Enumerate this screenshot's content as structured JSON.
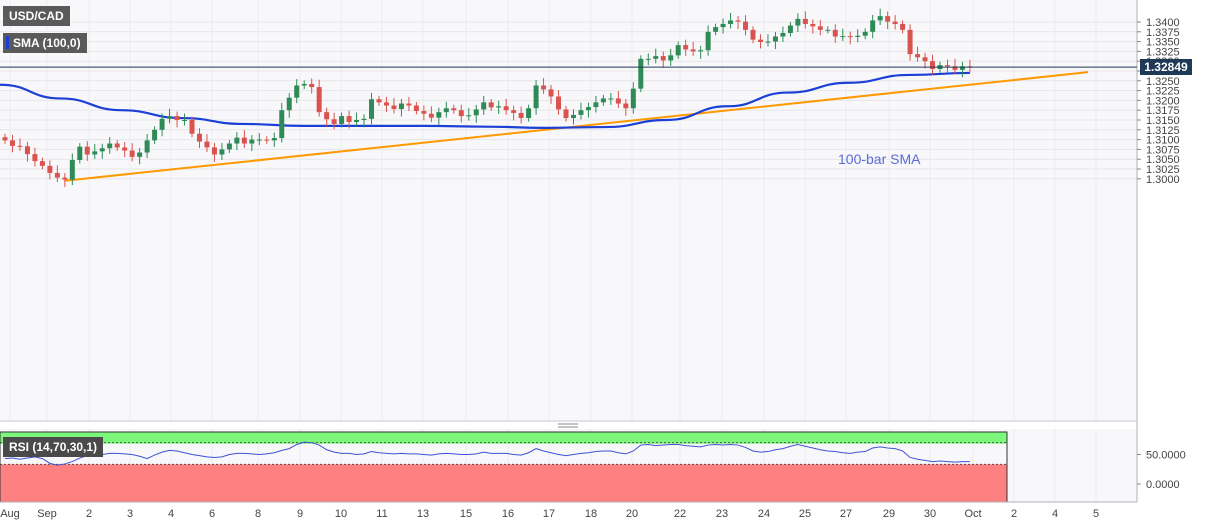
{
  "symbol_label": "USD/CAD",
  "indicator_label": "SMA (100,0)",
  "rsi_label": "RSI (14,70,30,1)",
  "sma_annotation": "100-bar SMA",
  "current_price": "1.32849",
  "colors": {
    "bull": "#2e8b57",
    "bear": "#d9534f",
    "sma": "#1c3fd6",
    "trendline": "#ff9900",
    "rsi_line": "#3f51d6",
    "rsi_overbought": "#7cf77c",
    "rsi_oversold": "#ff8080",
    "price_badge": "#1f3a57",
    "current_line": "#1f3a57"
  },
  "chart_data": [
    {
      "type": "candlestick",
      "title": "USD/CAD",
      "y_ticks": [
        "1.3000",
        "1.3025",
        "1.3050",
        "1.3075",
        "1.3100",
        "1.3125",
        "1.3150",
        "1.3175",
        "1.3200",
        "1.3225",
        "1.3250",
        "1.3275",
        "1.3300",
        "1.3325",
        "1.3350",
        "1.3375",
        "1.3400"
      ],
      "ylim": [
        1.2987,
        1.343
      ],
      "x_ticks": [
        "Aug",
        "Sep",
        "2",
        "3",
        "4",
        "6",
        "8",
        "9",
        "10",
        "11",
        "13",
        "15",
        "16",
        "17",
        "18",
        "20",
        "22",
        "23",
        "24",
        "25",
        "27",
        "29",
        "30",
        "Oct",
        "2",
        "4",
        "5"
      ],
      "grid": true,
      "closes": [
        1.3098,
        1.3084,
        1.3083,
        1.3063,
        1.3045,
        1.3033,
        1.3015,
        1.3003,
        1.2998,
        1.3048,
        1.3082,
        1.3062,
        1.307,
        1.3078,
        1.309,
        1.308,
        1.3072,
        1.3056,
        1.3067,
        1.3098,
        1.3125,
        1.3153,
        1.316,
        1.315,
        1.315,
        1.3115,
        1.3095,
        1.308,
        1.3062,
        1.3075,
        1.309,
        1.3105,
        1.309,
        1.31,
        1.31,
        1.3098,
        1.3104,
        1.3175,
        1.3207,
        1.3238,
        1.3242,
        1.3234,
        1.317,
        1.3152,
        1.314,
        1.316,
        1.3145,
        1.315,
        1.3153,
        1.3203,
        1.3195,
        1.3187,
        1.3178,
        1.3192,
        1.3187,
        1.3173,
        1.3166,
        1.3156,
        1.317,
        1.318,
        1.3175,
        1.316,
        1.3162,
        1.3177,
        1.3195,
        1.3182,
        1.3185,
        1.3175,
        1.3168,
        1.3155,
        1.318,
        1.3238,
        1.3228,
        1.321,
        1.3177,
        1.3155,
        1.3163,
        1.3175,
        1.3183,
        1.3195,
        1.3205,
        1.3205,
        1.3192,
        1.318,
        1.323,
        1.3306,
        1.3306,
        1.3313,
        1.3302,
        1.3315,
        1.3341,
        1.333,
        1.3325,
        1.3328,
        1.3375,
        1.3387,
        1.3395,
        1.3404,
        1.3401,
        1.338,
        1.3355,
        1.3349,
        1.335,
        1.3363,
        1.3372,
        1.3391,
        1.3408,
        1.3395,
        1.3389,
        1.338,
        1.338,
        1.3363,
        1.3364,
        1.3362,
        1.3365,
        1.3375,
        1.3404,
        1.3415,
        1.3401,
        1.3395,
        1.338,
        1.3318,
        1.331,
        1.33,
        1.328,
        1.329,
        1.3287,
        1.3278,
        1.3287,
        1.3285
      ]
    },
    {
      "type": "line",
      "name": "100-bar SMA",
      "values": [
        1.324,
        1.3205,
        1.3175,
        1.3155,
        1.314,
        1.3135,
        1.3135,
        1.3135,
        1.3133,
        1.313,
        1.3132,
        1.315,
        1.3185,
        1.322,
        1.3245,
        1.3265,
        1.327
      ]
    },
    {
      "type": "line",
      "name": "trendline",
      "values": [
        1.2995,
        1.3272
      ]
    },
    {
      "type": "line",
      "title": "RSI (14,70,30,1)",
      "y_ticks": [
        "50.0000",
        "0.0000"
      ],
      "ylim": [
        0,
        100
      ],
      "levels": [
        70,
        30
      ],
      "values": [
        43,
        44,
        42,
        44,
        46,
        43,
        35,
        32,
        34,
        38,
        44,
        48,
        49,
        50,
        52,
        52,
        51,
        50,
        47,
        43,
        49,
        54,
        57,
        56,
        53,
        50,
        48,
        46,
        45,
        46,
        50,
        52,
        52,
        51,
        50,
        51,
        53,
        57,
        60,
        67,
        71,
        70,
        66,
        58,
        54,
        52,
        52,
        50,
        51,
        55,
        53,
        52,
        51,
        52,
        51,
        51,
        50,
        49,
        51,
        52,
        51,
        50,
        50,
        51,
        54,
        52,
        52,
        52,
        50,
        49,
        53,
        60,
        56,
        53,
        50,
        48,
        50,
        52,
        53,
        55,
        56,
        56,
        53,
        51,
        56,
        66,
        67,
        65,
        66,
        67,
        67,
        65,
        64,
        63,
        66,
        67,
        66,
        67,
        66,
        62,
        56,
        54,
        55,
        58,
        60,
        64,
        67,
        64,
        61,
        58,
        56,
        55,
        53,
        52,
        54,
        55,
        61,
        63,
        61,
        60,
        56,
        45,
        42,
        40,
        38,
        39,
        38,
        37,
        38,
        38
      ]
    }
  ]
}
